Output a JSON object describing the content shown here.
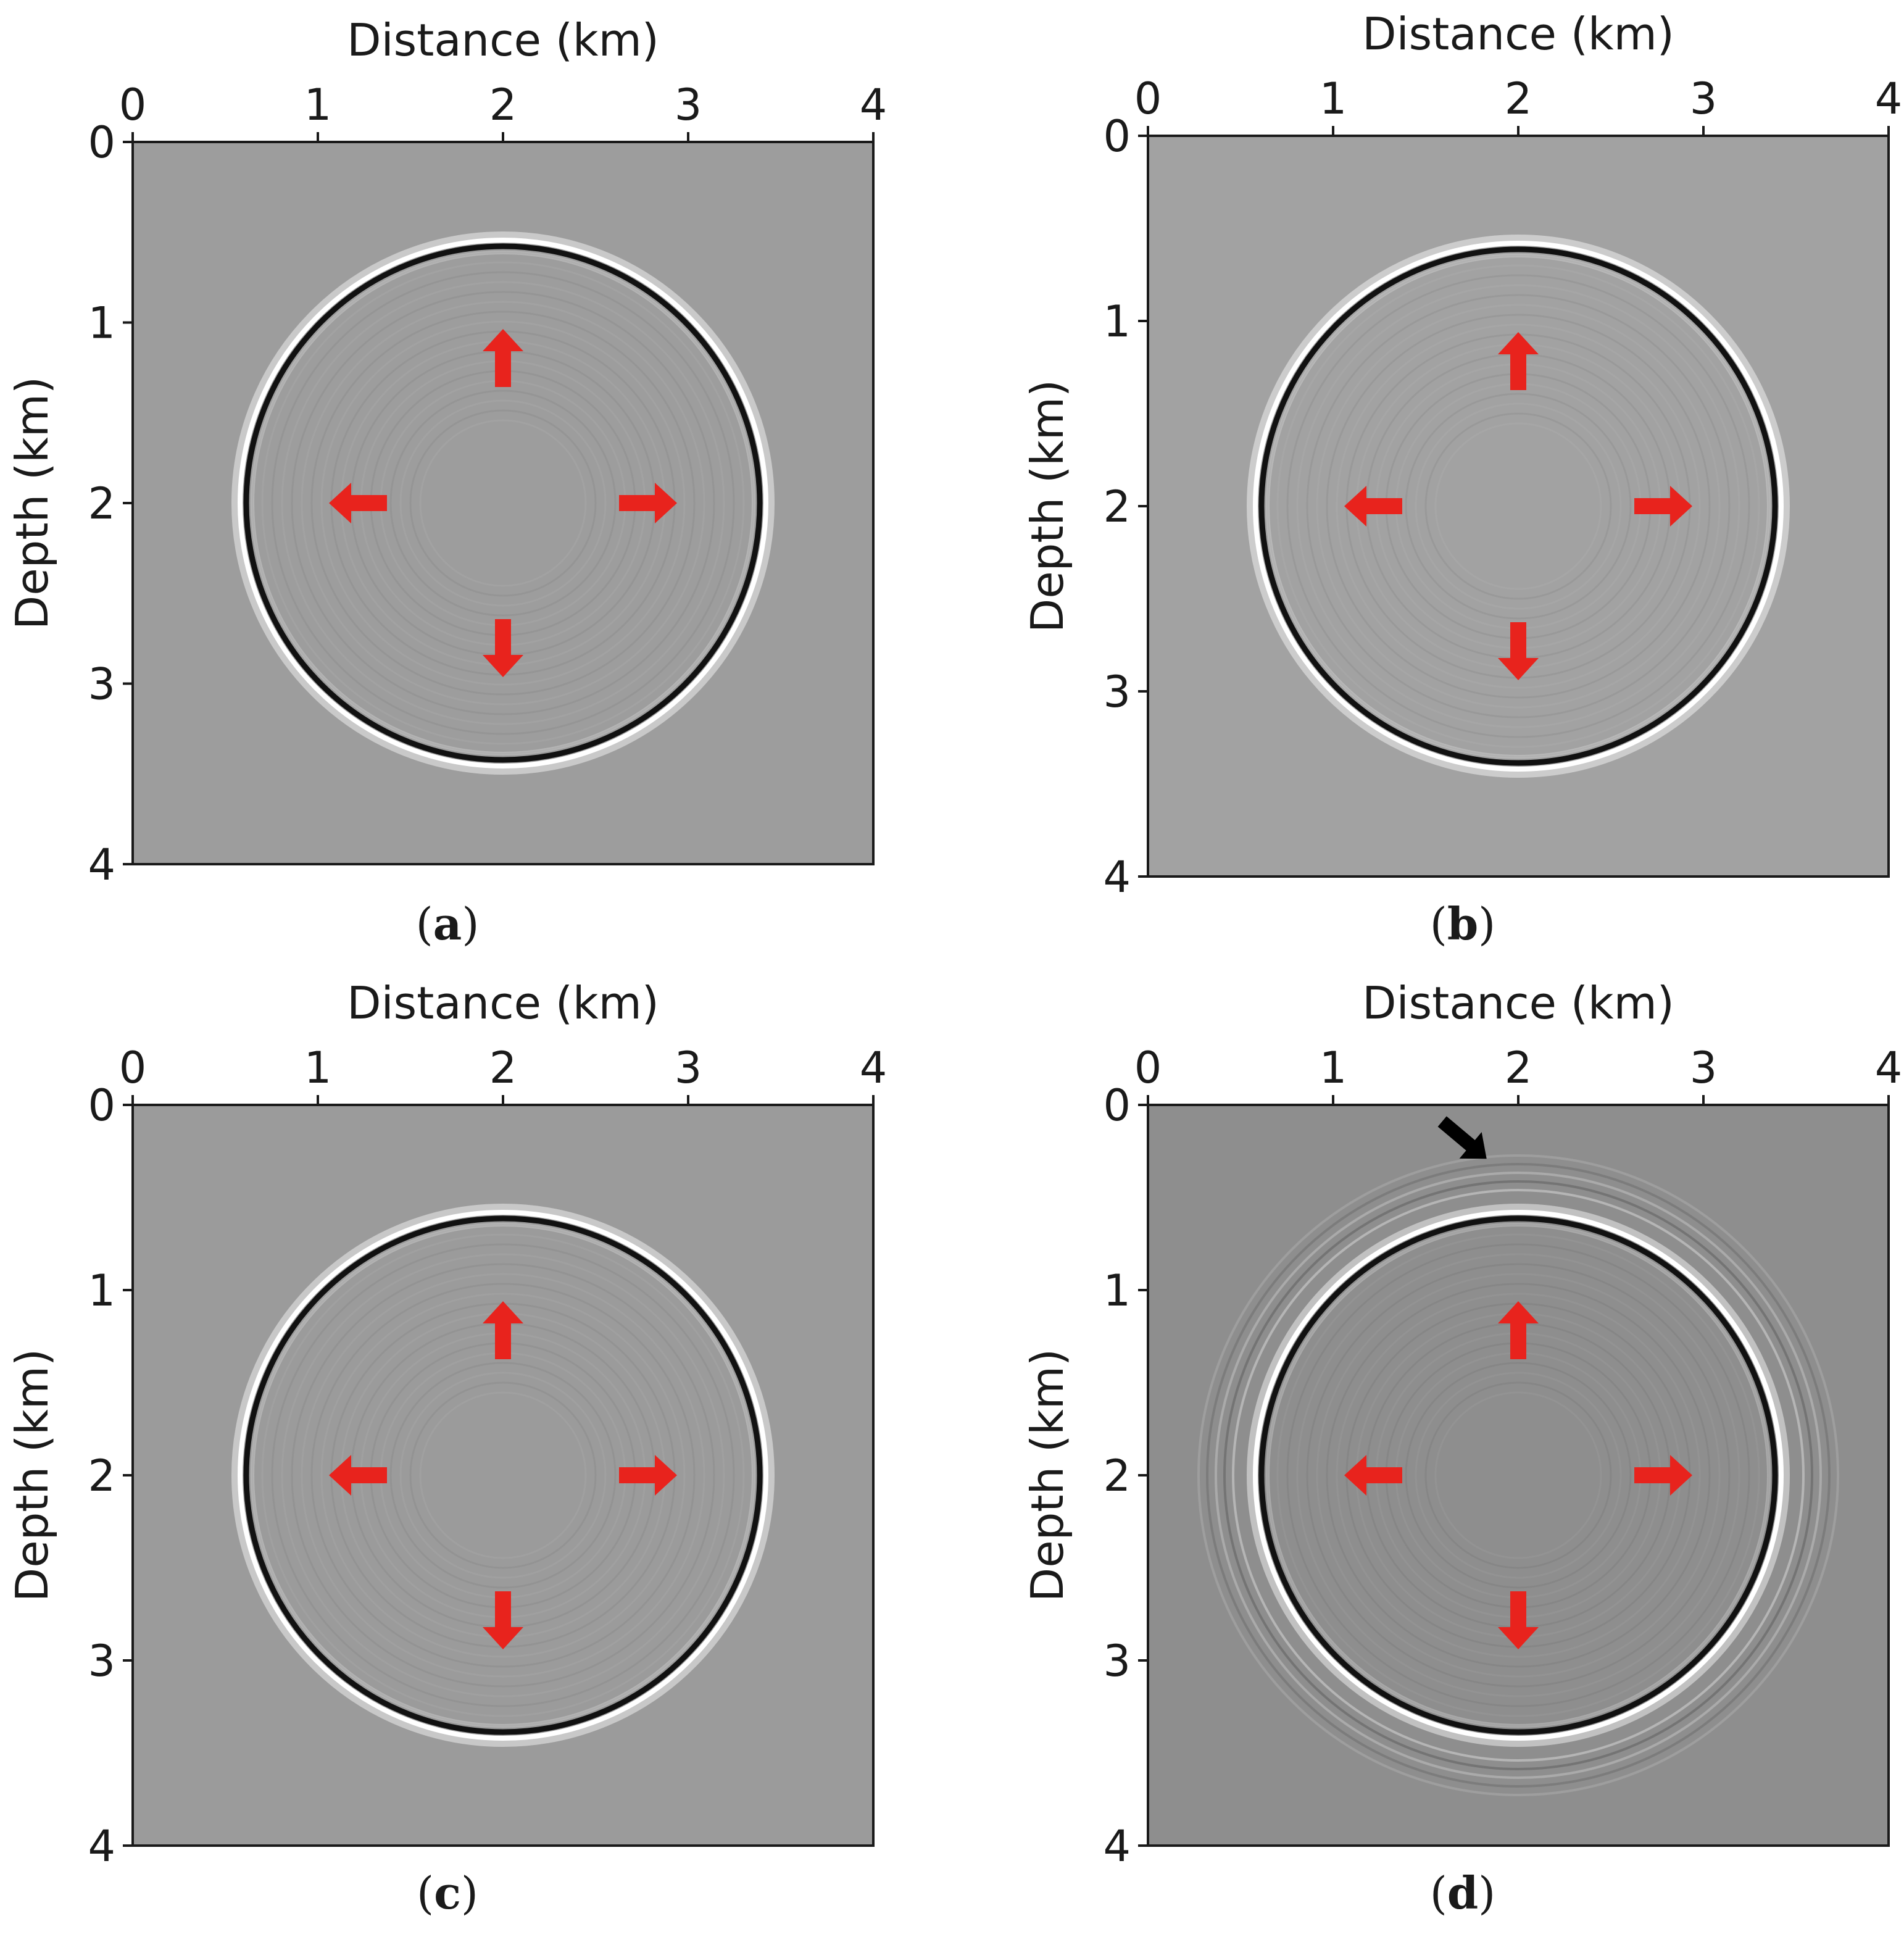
{
  "figure": {
    "panels": [
      {
        "id": "a",
        "caption_open": "(",
        "caption_letter": "a",
        "caption_close": ")",
        "background_gray": "#9d9d9d",
        "has_precursor": false
      },
      {
        "id": "b",
        "caption_open": "(",
        "caption_letter": "b",
        "caption_close": ")",
        "background_gray": "#a2a2a2",
        "has_precursor": false
      },
      {
        "id": "c",
        "caption_open": "(",
        "caption_letter": "c",
        "caption_close": ")",
        "background_gray": "#9b9b9b",
        "has_precursor": false
      },
      {
        "id": "d",
        "caption_open": "(",
        "caption_letter": "d",
        "caption_close": ")",
        "background_gray": "#8e8e8e",
        "has_precursor": true
      }
    ]
  },
  "chart_data": {
    "type": "heatmap",
    "xlabel": "Distance (km)",
    "ylabel": "Depth (km)",
    "xlim": [
      0,
      4
    ],
    "ylim": [
      0,
      4
    ],
    "x_ticks": [
      "0",
      "1",
      "2",
      "3",
      "4"
    ],
    "y_ticks": [
      "0",
      "1",
      "2",
      "3",
      "4"
    ],
    "wavefront": {
      "center_x_km": 2.0,
      "center_z_km": 2.0,
      "radius_km": 1.4
    },
    "propagation_arrows": {
      "color": "#e8231d",
      "directions": [
        "up",
        "down",
        "left",
        "right"
      ]
    },
    "artifact_arrow": {
      "panel": "d",
      "color": "#000000",
      "points_to_x_km": 1.85,
      "points_to_z_km": 0.33
    }
  }
}
